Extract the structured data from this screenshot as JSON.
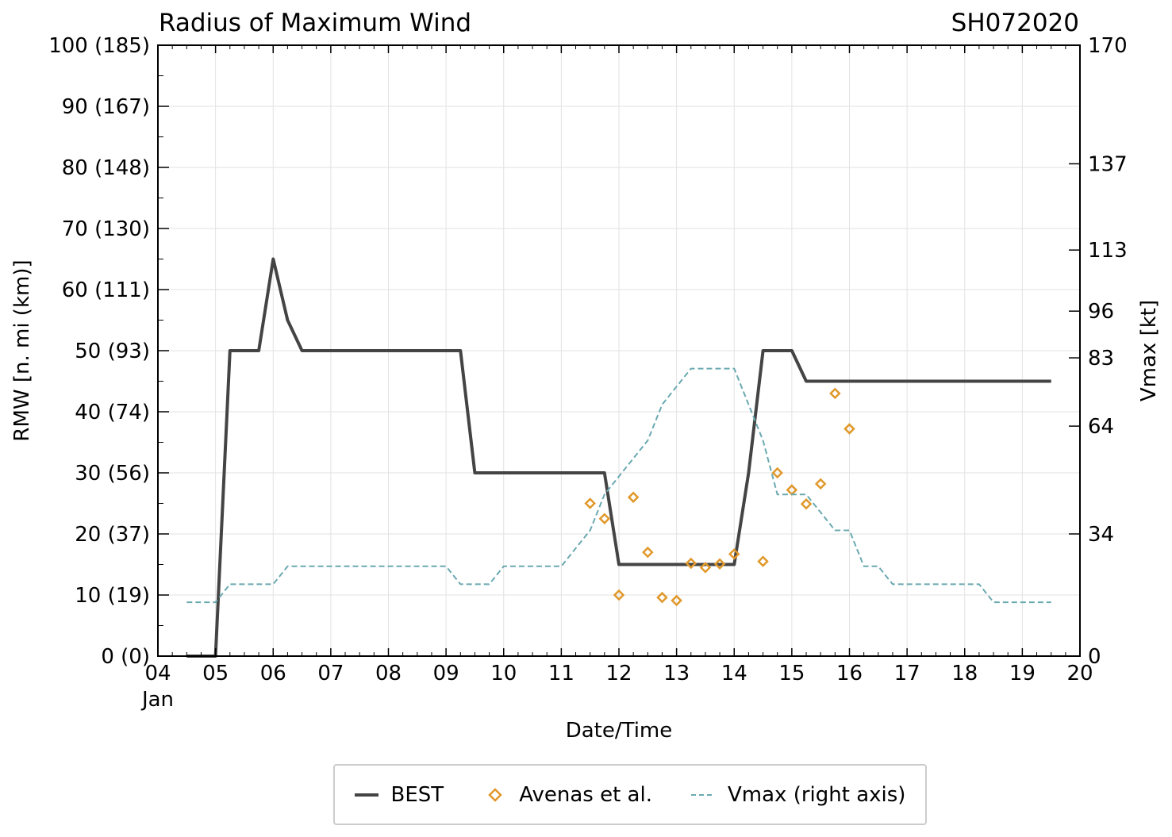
{
  "chart_data": {
    "type": "line",
    "title": "Radius of Maximum Wind",
    "storm_id": "SH072020",
    "xlabel": "Date/Time",
    "ylabel_left": "RMW [n. mi (km)]",
    "ylabel_right": "Vmax [kt]",
    "x_range_days": [
      4,
      20
    ],
    "x_ticks": [
      {
        "day": 4,
        "label": "04",
        "sublabel": "Jan"
      },
      {
        "day": 5,
        "label": "05"
      },
      {
        "day": 6,
        "label": "06"
      },
      {
        "day": 7,
        "label": "07"
      },
      {
        "day": 8,
        "label": "08"
      },
      {
        "day": 9,
        "label": "09"
      },
      {
        "day": 10,
        "label": "10"
      },
      {
        "day": 11,
        "label": "11"
      },
      {
        "day": 12,
        "label": "12"
      },
      {
        "day": 13,
        "label": "13"
      },
      {
        "day": 14,
        "label": "14"
      },
      {
        "day": 15,
        "label": "15"
      },
      {
        "day": 16,
        "label": "16"
      },
      {
        "day": 17,
        "label": "17"
      },
      {
        "day": 18,
        "label": "18"
      },
      {
        "day": 19,
        "label": "19"
      },
      {
        "day": 20,
        "label": "20"
      }
    ],
    "y_left_range": [
      0,
      100
    ],
    "y_left_ticks": [
      {
        "value": 0,
        "label": "0 (0)"
      },
      {
        "value": 10,
        "label": "10 (19)"
      },
      {
        "value": 20,
        "label": "20 (37)"
      },
      {
        "value": 30,
        "label": "30 (56)"
      },
      {
        "value": 40,
        "label": "40 (74)"
      },
      {
        "value": 50,
        "label": "50 (93)"
      },
      {
        "value": 60,
        "label": "60 (111)"
      },
      {
        "value": 70,
        "label": "70 (130)"
      },
      {
        "value": 80,
        "label": "80 (148)"
      },
      {
        "value": 90,
        "label": "90 (167)"
      },
      {
        "value": 100,
        "label": "100 (185)"
      }
    ],
    "y_right_range": [
      0,
      170
    ],
    "y_right_ticks": [
      {
        "value": 0,
        "label": "0"
      },
      {
        "value": 34,
        "label": "34"
      },
      {
        "value": 64,
        "label": "64"
      },
      {
        "value": 83,
        "label": "83"
      },
      {
        "value": 96,
        "label": "96"
      },
      {
        "value": 113,
        "label": "113"
      },
      {
        "value": 137,
        "label": "137"
      },
      {
        "value": 170,
        "label": "170"
      }
    ],
    "grid": true,
    "legend_position": "bottom-center",
    "series": [
      {
        "name": "BEST",
        "style": "line",
        "color": "#444444",
        "axis": "left",
        "points": [
          [
            4.5,
            0
          ],
          [
            5.0,
            0
          ],
          [
            5.25,
            50
          ],
          [
            5.75,
            50
          ],
          [
            6.0,
            65
          ],
          [
            6.25,
            55
          ],
          [
            6.5,
            50
          ],
          [
            7.0,
            50
          ],
          [
            8.0,
            50
          ],
          [
            9.0,
            50
          ],
          [
            9.25,
            50
          ],
          [
            9.5,
            30
          ],
          [
            11.0,
            30
          ],
          [
            11.75,
            30
          ],
          [
            12.0,
            15
          ],
          [
            13.0,
            15
          ],
          [
            14.0,
            15
          ],
          [
            14.25,
            30
          ],
          [
            14.5,
            50
          ],
          [
            15.0,
            50
          ],
          [
            15.25,
            45
          ],
          [
            16.0,
            45
          ],
          [
            17.0,
            45
          ],
          [
            18.0,
            45
          ],
          [
            19.0,
            45
          ],
          [
            19.5,
            45
          ]
        ]
      },
      {
        "name": "Avenas et al.",
        "style": "marker",
        "color": "#e0982a",
        "axis": "left",
        "points": [
          [
            11.5,
            25
          ],
          [
            11.75,
            22.5
          ],
          [
            12.0,
            10
          ],
          [
            12.25,
            26
          ],
          [
            12.5,
            17
          ],
          [
            12.75,
            9.6
          ],
          [
            13.0,
            9.1
          ],
          [
            13.25,
            15.2
          ],
          [
            13.5,
            14.5
          ],
          [
            13.75,
            15.1
          ],
          [
            14.0,
            16.7
          ],
          [
            14.5,
            15.5
          ],
          [
            14.75,
            30
          ],
          [
            15.0,
            27.2
          ],
          [
            15.25,
            24.9
          ],
          [
            15.5,
            28.2
          ],
          [
            15.75,
            43
          ],
          [
            16.0,
            37.2
          ]
        ]
      },
      {
        "name": "Vmax (right axis)",
        "style": "dashed",
        "color": "#6aa9b0",
        "axis": "right",
        "points": [
          [
            4.5,
            15
          ],
          [
            5.0,
            15
          ],
          [
            5.25,
            20
          ],
          [
            6.0,
            20
          ],
          [
            6.25,
            25
          ],
          [
            8.5,
            25
          ],
          [
            9.0,
            25
          ],
          [
            9.25,
            20
          ],
          [
            9.75,
            20
          ],
          [
            10.0,
            25
          ],
          [
            11.0,
            25
          ],
          [
            11.25,
            30
          ],
          [
            11.5,
            35
          ],
          [
            11.75,
            45
          ],
          [
            12.0,
            50
          ],
          [
            12.5,
            60
          ],
          [
            12.75,
            70
          ],
          [
            13.0,
            75
          ],
          [
            13.25,
            80
          ],
          [
            14.0,
            80
          ],
          [
            14.25,
            70
          ],
          [
            14.5,
            60
          ],
          [
            14.75,
            45
          ],
          [
            15.0,
            45
          ],
          [
            15.25,
            45
          ],
          [
            15.5,
            40
          ],
          [
            15.75,
            35
          ],
          [
            16.0,
            35
          ],
          [
            16.25,
            25
          ],
          [
            16.5,
            25
          ],
          [
            16.75,
            20
          ],
          [
            18.25,
            20
          ],
          [
            18.5,
            15
          ],
          [
            19.5,
            15
          ]
        ]
      }
    ]
  }
}
